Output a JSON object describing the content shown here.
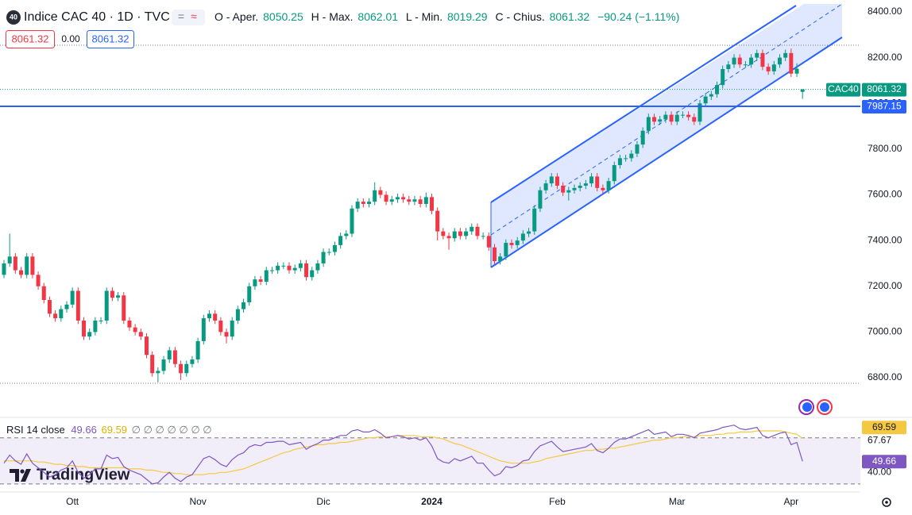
{
  "header": {
    "logo": "40",
    "title": "Indice CAC 40 · 1D · TVC",
    "o_label": "O - Aper.",
    "o": 8050.25,
    "h_label": "H - Max.",
    "h": 8062.01,
    "l_label": "L - Min.",
    "l": 8019.29,
    "c_label": "C - Chius.",
    "c": 8061.32,
    "change": "−90.24 (−1.11%)",
    "bid": 8061.32,
    "spread": "0.00",
    "ask": 8061.32
  },
  "chart_data": {
    "type": "candlestick",
    "symbol": "CAC40",
    "open": [
      7250,
      7300,
      7330,
      7270,
      7250,
      7330,
      7250,
      7200,
      7140,
      7080,
      7060,
      7100,
      7120,
      7180,
      7050,
      6980,
      7000,
      7050,
      7050,
      7180,
      7150,
      7160,
      7050,
      7020,
      7000,
      6980,
      6900,
      6820,
      6830,
      6880,
      6920,
      6860,
      6820,
      6860,
      6880,
      6960,
      7060,
      7080,
      7050,
      7000,
      6980,
      7050,
      7100,
      7130,
      7200,
      7230,
      7220,
      7270,
      7270,
      7290,
      7290,
      7270,
      7280,
      7300,
      7240,
      7270,
      7300,
      7350,
      7350,
      7380,
      7420,
      7430,
      7540,
      7570,
      7560,
      7570,
      7620,
      7600,
      7570,
      7580,
      7590,
      7580,
      7570,
      7580,
      7560,
      7590,
      7530,
      7440,
      7420,
      7410,
      7440,
      7420,
      7440,
      7460,
      7420,
      7420,
      7370,
      7310,
      7330,
      7390,
      7380,
      7400,
      7430,
      7440,
      7540,
      7620,
      7650,
      7680,
      7640,
      7610,
      7620,
      7630,
      7640,
      7650,
      7680,
      7630,
      7620,
      7660,
      7730,
      7760,
      7760,
      7780,
      7820,
      7880,
      7940,
      7920,
      7930,
      7950,
      7920,
      7950,
      7950,
      7940,
      7920,
      8000,
      8030,
      8040,
      8080,
      8150,
      8170,
      8200,
      8170,
      8170,
      8200,
      8220,
      8160,
      8140,
      8170,
      8200,
      8220,
      8130,
      8050.25
    ],
    "high": [
      7315,
      7430,
      7345,
      7285,
      7345,
      7345,
      7265,
      7215,
      7155,
      7095,
      7115,
      7135,
      7195,
      7195,
      7065,
      7015,
      7065,
      7065,
      7195,
      7195,
      7175,
      7175,
      7065,
      7035,
      7015,
      6995,
      6915,
      6845,
      6895,
      6935,
      6935,
      6875,
      6875,
      6895,
      6975,
      7075,
      7095,
      7095,
      7065,
      7015,
      7065,
      7115,
      7145,
      7215,
      7245,
      7245,
      7285,
      7285,
      7305,
      7305,
      7305,
      7295,
      7315,
      7315,
      7285,
      7315,
      7365,
      7365,
      7395,
      7435,
      7445,
      7555,
      7585,
      7585,
      7585,
      7655,
      7635,
      7615,
      7595,
      7605,
      7605,
      7595,
      7595,
      7595,
      7610,
      7605,
      7545,
      7455,
      7435,
      7455,
      7455,
      7455,
      7475,
      7475,
      7435,
      7435,
      7385,
      7345,
      7405,
      7405,
      7415,
      7445,
      7455,
      7555,
      7635,
      7665,
      7695,
      7695,
      7655,
      7635,
      7645,
      7655,
      7665,
      7695,
      7695,
      7645,
      7675,
      7745,
      7775,
      7775,
      7795,
      7835,
      7895,
      7955,
      7955,
      7945,
      7965,
      7965,
      7965,
      7965,
      7965,
      7955,
      8015,
      8045,
      8055,
      8095,
      8165,
      8185,
      8215,
      8215,
      8185,
      8215,
      8235,
      8235,
      8175,
      8185,
      8215,
      8235,
      8240,
      8175,
      8062.01
    ],
    "low": [
      7235,
      7285,
      7255,
      7235,
      7235,
      7235,
      7185,
      7125,
      7065,
      7045,
      7045,
      7085,
      7105,
      7035,
      6965,
      6965,
      6985,
      7035,
      7035,
      7135,
      7135,
      7035,
      7005,
      6985,
      6965,
      6885,
      6805,
      6780,
      6815,
      6865,
      6845,
      6790,
      6805,
      6845,
      6865,
      6945,
      7045,
      7035,
      6985,
      6950,
      6965,
      7035,
      7085,
      7115,
      7185,
      7205,
      7205,
      7255,
      7255,
      7275,
      7255,
      7255,
      7265,
      7225,
      7225,
      7255,
      7285,
      7335,
      7335,
      7365,
      7405,
      7415,
      7525,
      7545,
      7545,
      7555,
      7585,
      7555,
      7555,
      7565,
      7565,
      7555,
      7555,
      7545,
      7545,
      7515,
      7400,
      7405,
      7360,
      7395,
      7405,
      7405,
      7425,
      7405,
      7405,
      7355,
      7295,
      7295,
      7315,
      7365,
      7365,
      7385,
      7415,
      7425,
      7525,
      7605,
      7635,
      7625,
      7595,
      7575,
      7605,
      7615,
      7625,
      7635,
      7615,
      7605,
      7605,
      7645,
      7715,
      7745,
      7745,
      7765,
      7805,
      7865,
      7905,
      7905,
      7915,
      7905,
      7905,
      7935,
      7925,
      7905,
      7905,
      7985,
      8015,
      8025,
      8065,
      8135,
      8155,
      8155,
      8155,
      8155,
      8185,
      8145,
      8125,
      8125,
      8155,
      8185,
      8115,
      8115,
      8019.29
    ],
    "close": [
      7300,
      7330,
      7270,
      7250,
      7330,
      7250,
      7200,
      7140,
      7080,
      7060,
      7100,
      7120,
      7180,
      7050,
      6980,
      7000,
      7050,
      7050,
      7180,
      7150,
      7160,
      7050,
      7020,
      7000,
      6980,
      6900,
      6820,
      6830,
      6880,
      6920,
      6860,
      6820,
      6860,
      6880,
      6960,
      7060,
      7080,
      7050,
      7000,
      6980,
      7050,
      7100,
      7130,
      7200,
      7230,
      7220,
      7270,
      7270,
      7290,
      7290,
      7270,
      7280,
      7300,
      7240,
      7270,
      7300,
      7350,
      7350,
      7380,
      7420,
      7430,
      7540,
      7570,
      7560,
      7570,
      7620,
      7600,
      7570,
      7580,
      7590,
      7580,
      7570,
      7580,
      7560,
      7590,
      7530,
      7440,
      7420,
      7410,
      7440,
      7420,
      7440,
      7460,
      7420,
      7420,
      7370,
      7310,
      7330,
      7390,
      7380,
      7400,
      7430,
      7440,
      7540,
      7620,
      7650,
      7680,
      7640,
      7610,
      7620,
      7630,
      7640,
      7650,
      7680,
      7630,
      7620,
      7660,
      7730,
      7760,
      7760,
      7780,
      7820,
      7880,
      7940,
      7920,
      7930,
      7950,
      7920,
      7950,
      7950,
      7940,
      7920,
      8000,
      8030,
      8040,
      8080,
      8150,
      8170,
      8200,
      8170,
      8170,
      8200,
      8220,
      8160,
      8140,
      8170,
      8200,
      8220,
      8130,
      8151.56,
      8061.32
    ],
    "up_color": "#089981",
    "down_color": "#f23645",
    "ylim": [
      6630,
      8452
    ],
    "yticks": [
      {
        "value": 6800,
        "label": "6800.00"
      },
      {
        "value": 7000,
        "label": "7000.00"
      },
      {
        "value": 7200,
        "label": "7200.00"
      },
      {
        "value": 7400,
        "label": "7400.00"
      },
      {
        "value": 7600,
        "label": "7600.00"
      },
      {
        "value": 7800,
        "label": "7800.00"
      },
      {
        "value": 8000,
        "label": "8000.00"
      },
      {
        "value": 8200,
        "label": "8200.00"
      },
      {
        "value": 8400,
        "label": "8400.00"
      }
    ],
    "xticks": [
      {
        "value": 12,
        "label": "Ott"
      },
      {
        "value": 34,
        "label": "Nov"
      },
      {
        "value": 56,
        "label": "Dic"
      },
      {
        "value": 75,
        "label": "2024"
      },
      {
        "value": 97,
        "label": "Feb"
      },
      {
        "value": 118,
        "label": "Mar"
      },
      {
        "value": 138,
        "label": "Apr"
      }
    ],
    "last_price": 8061.32,
    "hline": {
      "value": 7987.15,
      "color": "#2962ff"
    }
  },
  "rsi": {
    "title": "RSI 14 close",
    "value": 49.66,
    "ma_value": 69.59,
    "inputs": "∅ ∅ ∅ ∅ ∅ ∅ ∅",
    "values": [
      48,
      55,
      50,
      47,
      56,
      48,
      44,
      40,
      36,
      38,
      42,
      44,
      50,
      40,
      35,
      38,
      43,
      43,
      55,
      52,
      53,
      45,
      42,
      40,
      38,
      34,
      30,
      31,
      36,
      40,
      35,
      32,
      36,
      38,
      45,
      52,
      54,
      51,
      47,
      45,
      51,
      55,
      57,
      62,
      64,
      63,
      66,
      66,
      67,
      67,
      64,
      65,
      66,
      60,
      63,
      65,
      68,
      68,
      70,
      72,
      72,
      76,
      77,
      75,
      75,
      77,
      74,
      70,
      71,
      72,
      71,
      69,
      70,
      68,
      70,
      63,
      52,
      49,
      48,
      52,
      50,
      52,
      54,
      48,
      48,
      42,
      37,
      39,
      45,
      44,
      46,
      50,
      51,
      58,
      63,
      65,
      67,
      62,
      58,
      59,
      60,
      61,
      62,
      65,
      59,
      57,
      61,
      66,
      69,
      69,
      71,
      73,
      75,
      77,
      73,
      74,
      75,
      71,
      73,
      73,
      72,
      70,
      74,
      75,
      76,
      77,
      79,
      80,
      81,
      78,
      77,
      78,
      79,
      72,
      70,
      72,
      74,
      75,
      64,
      66,
      49.66
    ],
    "ma": [
      50,
      50,
      50,
      50,
      50,
      50,
      49,
      49,
      48,
      47,
      47,
      46,
      46,
      45,
      45,
      44,
      44,
      44,
      44,
      44,
      44,
      44,
      43,
      43,
      43,
      42,
      42,
      41,
      40,
      40,
      39,
      39,
      38,
      38,
      38,
      38,
      39,
      39,
      40,
      40,
      41,
      42,
      43,
      45,
      47,
      49,
      51,
      53,
      55,
      57,
      58,
      60,
      61,
      62,
      63,
      64,
      64,
      65,
      65,
      66,
      66,
      67,
      68,
      69,
      70,
      70,
      71,
      71,
      71,
      72,
      72,
      72,
      72,
      71,
      71,
      71,
      70,
      69,
      67,
      65,
      64,
      62,
      60,
      58,
      56,
      54,
      52,
      50,
      49,
      48,
      48,
      48,
      48,
      49,
      50,
      52,
      53,
      54,
      55,
      56,
      57,
      58,
      59,
      59,
      60,
      60,
      61,
      61,
      62,
      63,
      64,
      65,
      66,
      67,
      68,
      68,
      69,
      70,
      70,
      71,
      71,
      71,
      72,
      72,
      72,
      73,
      73,
      74,
      74,
      75,
      75,
      75,
      76,
      76,
      76,
      76,
      76,
      75,
      74,
      73,
      69.59
    ],
    "ylim": [
      23,
      87
    ],
    "levels": [
      70,
      30
    ],
    "axis_labels": [
      {
        "value": 67.67,
        "label": "67.67"
      },
      {
        "value": 40,
        "label": "40.00"
      }
    ],
    "color": "#7e57c2",
    "ma_color": "#f5c842"
  },
  "branding": "TradingView"
}
